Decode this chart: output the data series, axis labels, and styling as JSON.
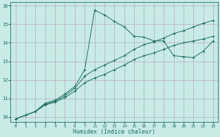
{
  "xlabel": "Humidex (Indice chaleur)",
  "bg_color": "#c8ebe6",
  "grid_color_major": "#b8a8b8",
  "grid_color_minor": "#d0c0d0",
  "line_color": "#1a6b5a",
  "xlim": [
    -0.5,
    20.5
  ],
  "ylim": [
    9.75,
    16.2
  ],
  "xtick_labels": [
    "0",
    "1",
    "2",
    "3",
    "4",
    "5",
    "6",
    "7",
    "11",
    "12",
    "13",
    "14",
    "15",
    "16",
    "17",
    "18",
    "19",
    "20",
    "21",
    "22",
    "23"
  ],
  "ytick_positions": [
    10,
    11,
    12,
    13,
    14,
    15,
    16
  ],
  "line3_pos": [
    0,
    1,
    2,
    3,
    4,
    5,
    6,
    7,
    8,
    9,
    10,
    11,
    12,
    13,
    14,
    15,
    16,
    17,
    18,
    19,
    20
  ],
  "line3_y": [
    9.9,
    10.1,
    10.3,
    10.65,
    10.8,
    11.05,
    11.4,
    11.85,
    12.1,
    12.3,
    12.55,
    12.8,
    13.1,
    13.3,
    13.45,
    13.65,
    13.85,
    14.0,
    14.1,
    14.2,
    14.35
  ],
  "line2_pos": [
    0,
    1,
    2,
    3,
    4,
    5,
    6,
    7,
    8,
    9,
    10,
    11,
    12,
    13,
    14,
    15,
    16,
    17,
    18,
    19,
    20
  ],
  "line2_y": [
    9.9,
    10.1,
    10.3,
    10.7,
    10.85,
    11.15,
    11.55,
    12.2,
    12.55,
    12.8,
    13.05,
    13.3,
    13.65,
    13.9,
    14.05,
    14.25,
    14.5,
    14.65,
    14.85,
    15.05,
    15.2
  ],
  "line1_pos": [
    0,
    1,
    2,
    3,
    4,
    5,
    6,
    7,
    8,
    9,
    10,
    11,
    12,
    13,
    14,
    15,
    16,
    17,
    18,
    19,
    20
  ],
  "line1_y": [
    9.9,
    10.1,
    10.3,
    10.75,
    10.9,
    11.25,
    11.65,
    12.55,
    15.75,
    15.5,
    15.15,
    14.85,
    14.35,
    14.3,
    14.1,
    14.1,
    13.3,
    13.25,
    13.2,
    13.55,
    14.1
  ]
}
